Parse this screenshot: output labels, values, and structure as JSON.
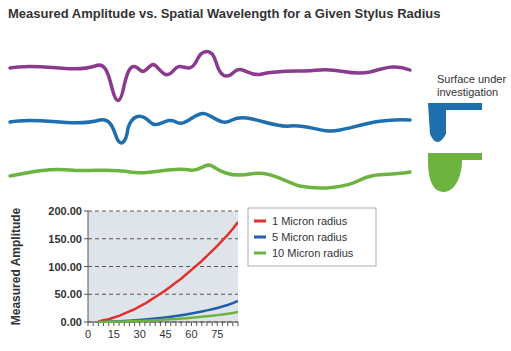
{
  "chart_data": {
    "type": "line",
    "title": "Measured Amplitude vs. Spatial Wavelength for a Given Stylus Radius",
    "annotation": "Surface under investigation",
    "y_label": "Measured Amplitude",
    "categories": [
      "0",
      null,
      null,
      null,
      null,
      "15",
      null,
      null,
      null,
      null,
      "30",
      null,
      null,
      null,
      null,
      "45",
      null,
      null,
      null,
      null,
      "60",
      null,
      null,
      null,
      null,
      "75",
      null,
      null,
      null,
      null
    ],
    "series": [
      {
        "name": "1 Micron radius",
        "color": "#e0312f",
        "values": [
          null,
          null,
          1,
          3,
          5,
          8,
          11,
          15,
          19,
          23,
          28,
          33,
          39,
          45,
          51,
          57,
          64,
          71,
          78,
          86,
          94,
          102,
          110,
          119,
          128,
          137,
          147,
          157,
          168,
          180
        ]
      },
      {
        "name": "5 Micron radius",
        "color": "#1f5fa8",
        "values": [
          null,
          null,
          0,
          0.2,
          0.5,
          0.9,
          1.3,
          1.8,
          2.4,
          3,
          3.7,
          4.5,
          5.3,
          6.2,
          7.2,
          8.3,
          9.5,
          10.8,
          12.2,
          13.7,
          15.3,
          17,
          18.9,
          20.9,
          23,
          25.3,
          27.8,
          30.6,
          34,
          38
        ]
      },
      {
        "name": "10 Micron radius",
        "color": "#6cb33f",
        "values": [
          null,
          null,
          0,
          0.1,
          0.3,
          0.5,
          0.7,
          1,
          1.3,
          1.6,
          2,
          2.4,
          2.8,
          3.3,
          3.8,
          4.3,
          4.9,
          5.5,
          6.2,
          6.9,
          7.7,
          8.5,
          9.4,
          10.3,
          11.3,
          12.4,
          13.6,
          14.9,
          16.4,
          18
        ]
      }
    ],
    "ylim": [
      0,
      200
    ],
    "yticks": [
      {
        "value": 0,
        "label": "0.00"
      },
      {
        "value": 50,
        "label": "50.00"
      },
      {
        "value": 100,
        "label": "100.00"
      },
      {
        "value": 150,
        "label": "150.00"
      },
      {
        "value": 200,
        "label": "200.00"
      }
    ],
    "grid": true,
    "legend": "right"
  }
}
